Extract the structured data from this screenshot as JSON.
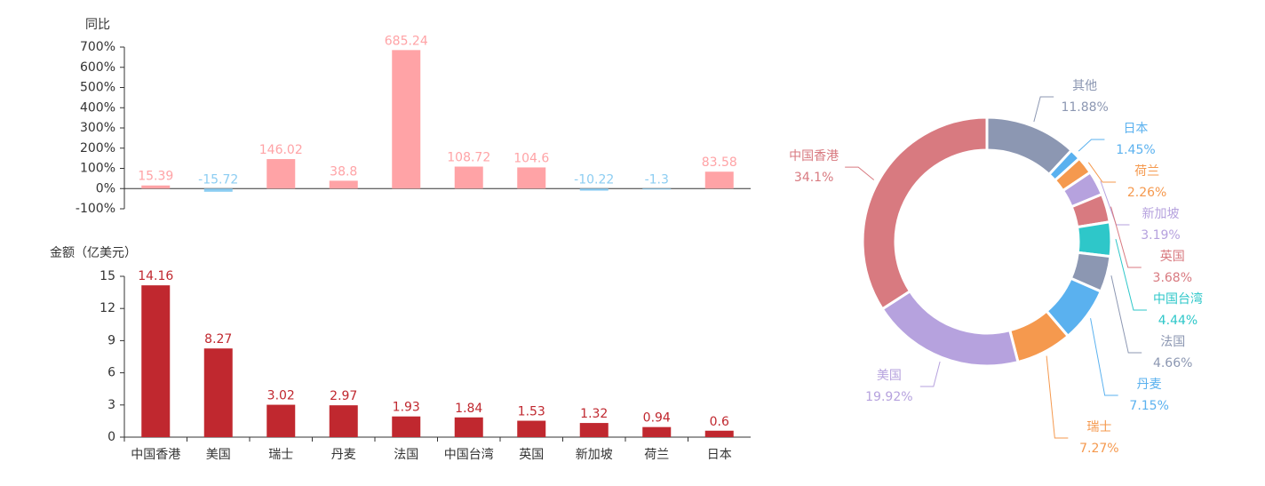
{
  "chart_data": [
    {
      "type": "bar",
      "ylabel": "同比",
      "values": [
        15.39,
        -15.72,
        146.02,
        38.8,
        685.24,
        108.72,
        104.6,
        -10.22,
        -1.3,
        83.58
      ],
      "color": "#ffa3a6",
      "negative_color": "#8ccdf2",
      "ylim": [
        -100,
        700
      ],
      "yticks": [
        {
          "value": -100,
          "label": "-100%"
        },
        {
          "value": 0,
          "label": "0%"
        },
        {
          "value": 100,
          "label": "100%"
        },
        {
          "value": 200,
          "label": "200%"
        },
        {
          "value": 300,
          "label": "300%"
        },
        {
          "value": 400,
          "label": "400%"
        },
        {
          "value": 500,
          "label": "500%"
        },
        {
          "value": 600,
          "label": "600%"
        },
        {
          "value": 700,
          "label": "700%"
        }
      ]
    },
    {
      "type": "bar",
      "ylabel": "金额（亿美元）",
      "categories": [
        "中国香港",
        "美国",
        "瑞士",
        "丹麦",
        "法国",
        "中国台湾",
        "英国",
        "新加坡",
        "荷兰",
        "日本"
      ],
      "values": [
        14.16,
        8.27,
        3.02,
        2.97,
        1.93,
        1.84,
        1.53,
        1.32,
        0.94,
        0.6
      ],
      "color": "#c0282f",
      "ylim": [
        0,
        15
      ],
      "yticks": [
        0,
        3,
        6,
        9,
        12,
        15
      ]
    },
    {
      "type": "pie",
      "categories": [
        "其他",
        "日本",
        "荷兰",
        "新加坡",
        "英国",
        "中国台湾",
        "法国",
        "丹麦",
        "瑞士",
        "美国",
        "中国香港"
      ],
      "values": [
        11.88,
        1.45,
        2.26,
        3.19,
        3.68,
        4.44,
        4.66,
        7.15,
        7.27,
        19.92,
        34.1
      ],
      "value_labels": [
        "11.88%",
        "1.45%",
        "2.26%",
        "3.19%",
        "3.68%",
        "4.44%",
        "4.66%",
        "7.15%",
        "7.27%",
        "19.92%",
        "34.1%"
      ],
      "colors": [
        "#8c97b2",
        "#5ab1ef",
        "#f5994e",
        "#b6a2de",
        "#d87a80",
        "#2ec7c9",
        "#8c97b2",
        "#5ab1ef",
        "#f5994e",
        "#b6a2de",
        "#d87a80"
      ]
    }
  ]
}
